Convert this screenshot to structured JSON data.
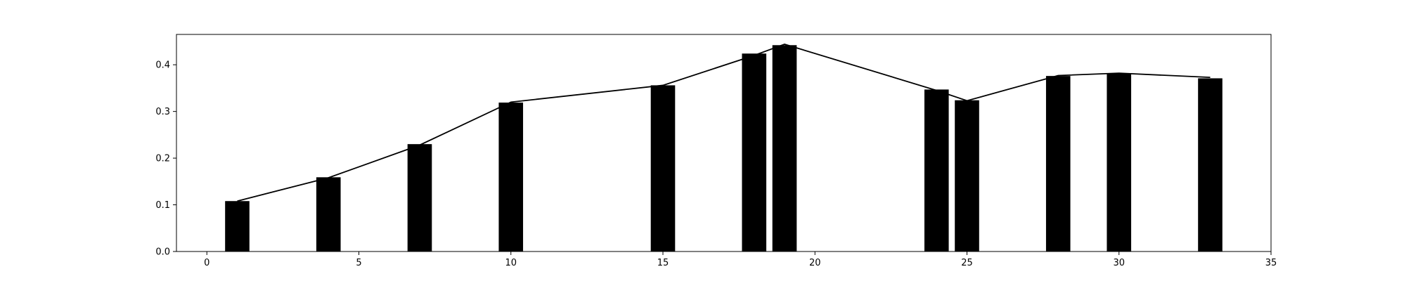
{
  "chart_data": {
    "type": "bar",
    "title": "",
    "xlabel": "",
    "ylabel": "",
    "xlim": [
      -1,
      35
    ],
    "ylim": [
      0,
      0.465
    ],
    "grid": false,
    "bar_width": 0.8,
    "colors": {
      "bar": "#000000",
      "line": "#000000",
      "axes": "#000000",
      "background": "#ffffff"
    },
    "x_ticks": [
      0,
      5,
      10,
      15,
      20,
      25,
      30,
      35
    ],
    "y_ticks": [
      0.0,
      0.1,
      0.2,
      0.3,
      0.4
    ],
    "x_tick_labels": [
      "0",
      "5",
      "10",
      "15",
      "20",
      "25",
      "30",
      "35"
    ],
    "y_tick_labels": [
      "0.0",
      "0.1",
      "0.2",
      "0.3",
      "0.4"
    ],
    "bars": {
      "x": [
        1,
        4,
        7,
        10,
        15,
        18,
        19,
        24,
        25,
        28,
        30,
        33
      ],
      "values": [
        0.108,
        0.159,
        0.23,
        0.319,
        0.356,
        0.424,
        0.442,
        0.347,
        0.324,
        0.376,
        0.381,
        0.371
      ]
    },
    "line": {
      "x": [
        1,
        4,
        7,
        10,
        15,
        18,
        19,
        24,
        25,
        28,
        30,
        33
      ],
      "values": [
        0.108,
        0.158,
        0.228,
        0.32,
        0.356,
        0.42,
        0.444,
        0.345,
        0.323,
        0.377,
        0.382,
        0.373
      ]
    }
  }
}
